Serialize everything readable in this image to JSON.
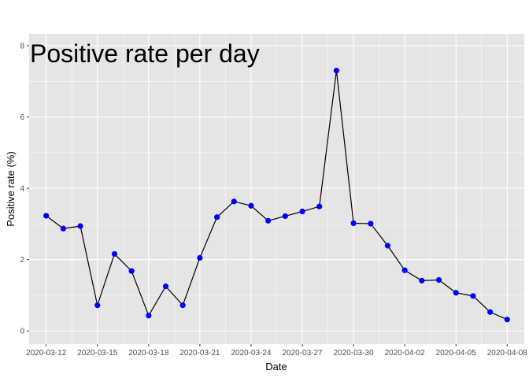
{
  "chart_data": {
    "type": "line",
    "title": "Positive rate per day",
    "xlabel": "Date",
    "ylabel": "Positive rate (%)",
    "x_tick_labels": [
      "2020-03-12",
      "2020-03-15",
      "2020-03-18",
      "2020-03-21",
      "2020-03-24",
      "2020-03-27",
      "2020-03-30",
      "2020-04-02",
      "2020-04-05",
      "2020-04-08"
    ],
    "y_ticks": [
      0,
      2,
      4,
      6,
      8
    ],
    "xlim": [
      "2020-03-11",
      "2020-04-09"
    ],
    "ylim": [
      -0.37,
      8.33
    ],
    "grid": true,
    "colors": {
      "panel": "#e5e5e5",
      "grid": "#ffffff",
      "line": "#000000",
      "point": "#0000ff"
    },
    "series": [
      {
        "x": [
          "2020-03-12",
          "2020-03-13",
          "2020-03-14",
          "2020-03-15",
          "2020-03-16",
          "2020-03-17",
          "2020-03-18",
          "2020-03-19",
          "2020-03-20",
          "2020-03-21",
          "2020-03-22",
          "2020-03-23",
          "2020-03-24",
          "2020-03-25",
          "2020-03-26",
          "2020-03-27",
          "2020-03-28",
          "2020-03-29",
          "2020-03-30",
          "2020-03-31",
          "2020-04-01",
          "2020-04-02",
          "2020-04-03",
          "2020-04-04",
          "2020-04-05",
          "2020-04-06",
          "2020-04-07",
          "2020-04-08"
        ],
        "values": [
          3.23,
          2.87,
          2.94,
          0.72,
          2.16,
          1.68,
          0.43,
          1.25,
          0.72,
          2.05,
          3.19,
          3.63,
          3.51,
          3.09,
          3.22,
          3.35,
          3.49,
          7.3,
          3.02,
          3.01,
          2.39,
          1.7,
          1.41,
          1.43,
          1.07,
          0.98,
          0.53,
          0.32
        ]
      }
    ]
  }
}
